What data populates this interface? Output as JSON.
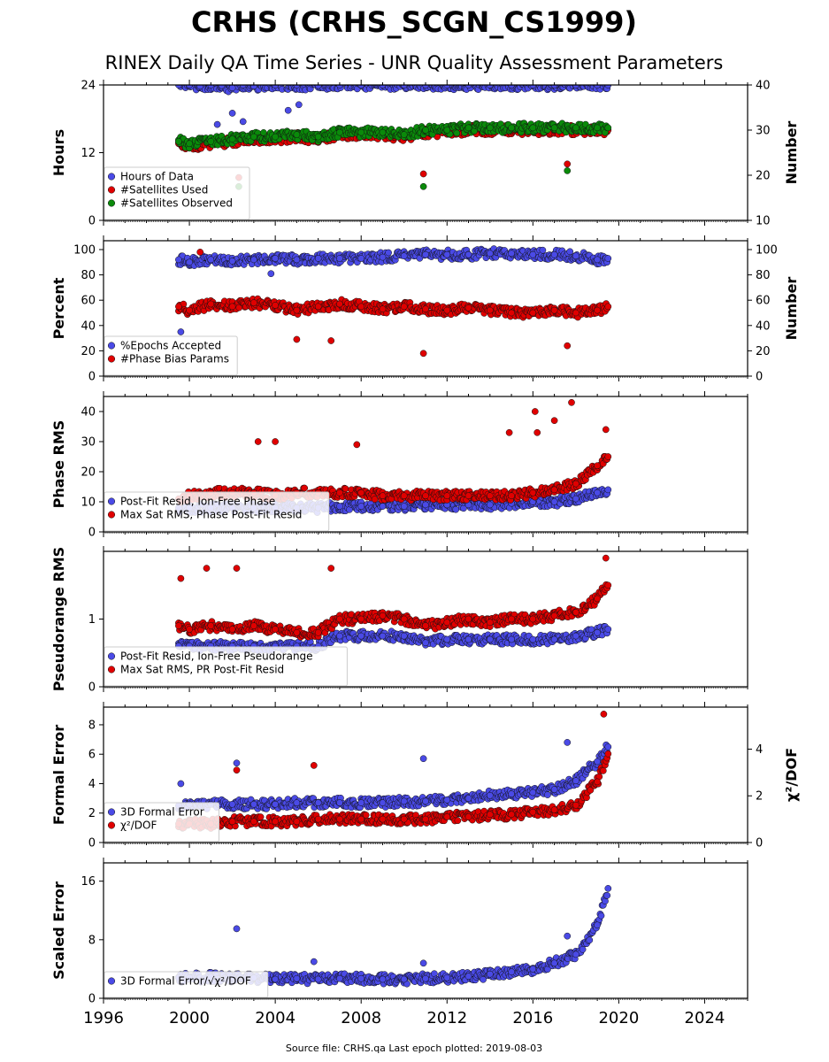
{
  "header": {
    "title": "CRHS (CRHS_SCGN_CS1999)",
    "subtitle": "RINEX Daily QA Time Series - UNR Quality Assessment Parameters"
  },
  "footer": {
    "text": "Source file: CRHS.qa Last epoch plotted: 2019-08-03"
  },
  "colors": {
    "blue": "#4a4ae6",
    "red": "#e00000",
    "green": "#0a8a0a"
  },
  "chart_data": [
    {
      "type": "scatter",
      "ylabel": "Hours",
      "ylabel_right": "Number",
      "ylim": [
        0,
        24
      ],
      "ylim_right": [
        10,
        40
      ],
      "yticks": [
        0,
        12,
        24
      ],
      "yticks_right": [
        10,
        20,
        30,
        40
      ],
      "xlim": [
        1996,
        2026
      ],
      "legend": "lower-left",
      "series": [
        {
          "name": "Hours of Data",
          "color": "blue",
          "axis": "left",
          "x": [
            1999.5,
            2000.0,
            2000.5,
            2001.0,
            2001.5,
            2002.0,
            2002.5,
            2003.0,
            2004.0,
            2005.0,
            2006.0,
            2007.0,
            2008.0,
            2009.0,
            2010.0,
            2011.0,
            2012.0,
            2013.0,
            2014.0,
            2015.0,
            2016.0,
            2017.0,
            2018.0,
            2019.0,
            2019.5,
            2001.3,
            2002.0,
            2002.5,
            2004.6,
            2005.1,
            2002.3
          ],
          "y": [
            24,
            24,
            23.8,
            24,
            23.9,
            23.5,
            24,
            23.8,
            24,
            24,
            23.9,
            24,
            24,
            24,
            24,
            24,
            24,
            24,
            24,
            24,
            24,
            24,
            24,
            24,
            24,
            17,
            19,
            17.5,
            19.5,
            20.5,
            15
          ]
        },
        {
          "name": "#Satellites Used",
          "color": "red",
          "axis": "right",
          "x": [
            1999.5,
            2000.0,
            2001.0,
            2002.0,
            2003.0,
            2004.0,
            2005.0,
            2006.0,
            2007.0,
            2008.0,
            2009.0,
            2010.0,
            2011.0,
            2012.0,
            2013.0,
            2014.0,
            2015.0,
            2016.0,
            2017.0,
            2018.0,
            2019.0,
            2019.5,
            2010.9,
            2017.6,
            2002.3
          ],
          "y": [
            27,
            26.5,
            27,
            27.5,
            28,
            28,
            28.5,
            28,
            29,
            29,
            29,
            28.5,
            29.5,
            29.5,
            30,
            30,
            30,
            30,
            30,
            30,
            30,
            30,
            20.3,
            22.5,
            19.5
          ]
        },
        {
          "name": "#Satellites Observed",
          "color": "green",
          "axis": "right",
          "x": [
            1999.5,
            2000.0,
            2001.0,
            2002.0,
            2003.0,
            2004.0,
            2005.0,
            2006.0,
            2007.0,
            2008.0,
            2009.0,
            2010.0,
            2011.0,
            2012.0,
            2013.0,
            2014.0,
            2015.0,
            2016.0,
            2017.0,
            2018.0,
            2019.0,
            2019.5,
            2010.9,
            2017.6,
            2002.3
          ],
          "y": [
            27.5,
            27,
            27.5,
            28,
            28.5,
            28.5,
            29,
            28.5,
            29.5,
            29.5,
            29.5,
            29,
            30,
            30,
            30.5,
            30.5,
            30.5,
            30.5,
            30.5,
            30.5,
            30.5,
            30.5,
            17.5,
            21,
            17.5
          ]
        }
      ]
    },
    {
      "type": "scatter",
      "ylabel": "Percent",
      "ylabel_right": "Number",
      "ylim": [
        0,
        107
      ],
      "ylim_right": [
        0,
        107
      ],
      "yticks": [
        0,
        20,
        40,
        60,
        80,
        100
      ],
      "yticks_right": [
        0,
        20,
        40,
        60,
        80,
        100
      ],
      "xlim": [
        1996,
        2026
      ],
      "legend": "lower-left",
      "series": [
        {
          "name": "%Epochs Accepted",
          "color": "blue",
          "axis": "left",
          "x": [
            1999.5,
            2000.0,
            2001.0,
            2002.0,
            2003.0,
            2004.0,
            2005.0,
            2006.0,
            2007.0,
            2008.0,
            2009.0,
            2010.0,
            2011.0,
            2012.0,
            2013.0,
            2014.0,
            2015.0,
            2016.0,
            2017.0,
            2018.0,
            2019.0,
            2019.5,
            1999.6,
            2003.8
          ],
          "y": [
            92,
            90,
            92,
            91,
            92,
            93,
            92,
            93,
            93,
            93,
            94,
            95,
            96,
            96,
            96,
            97,
            97,
            96,
            96,
            95,
            92,
            93,
            35,
            81
          ]
        },
        {
          "name": "#Phase Bias Params",
          "color": "red",
          "axis": "right",
          "x": [
            1999.5,
            2000.0,
            2001.0,
            2002.0,
            2003.0,
            2004.0,
            2005.0,
            2006.0,
            2007.0,
            2008.0,
            2009.0,
            2010.0,
            2011.0,
            2012.0,
            2013.0,
            2014.0,
            2015.0,
            2016.0,
            2017.0,
            2018.0,
            2019.0,
            2019.5,
            2005.0,
            2006.6,
            2010.9,
            2017.6,
            2000.5
          ],
          "y": [
            55,
            52,
            57,
            55,
            58,
            56,
            52,
            55,
            57,
            55,
            53,
            55,
            53,
            52,
            54,
            52,
            50,
            50,
            52,
            50,
            52,
            55,
            29,
            28,
            18,
            24,
            98
          ]
        }
      ]
    },
    {
      "type": "scatter",
      "ylabel": "Phase RMS",
      "ylim": [
        0,
        45
      ],
      "yticks": [
        0,
        10,
        20,
        30,
        40
      ],
      "xlim": [
        1996,
        2026
      ],
      "legend": "lower-left",
      "series": [
        {
          "name": "Post-Fit Resid, Ion-Free Phase",
          "color": "blue",
          "x": [
            1999.5,
            2000.0,
            2001.0,
            2002.0,
            2003.0,
            2004.0,
            2005.0,
            2006.0,
            2007.0,
            2008.0,
            2009.0,
            2010.0,
            2011.0,
            2012.0,
            2013.0,
            2014.0,
            2015.0,
            2016.0,
            2017.0,
            2018.0,
            2019.0,
            2019.5
          ],
          "y": [
            8,
            8,
            8,
            8,
            8,
            8,
            8,
            8,
            8.5,
            8.5,
            8.5,
            8.5,
            9,
            9,
            9,
            9,
            9.5,
            10,
            10,
            11,
            13,
            14
          ]
        },
        {
          "name": "Max Sat RMS, Phase Post-Fit Resid",
          "color": "red",
          "x": [
            1999.5,
            2000.0,
            2001.0,
            2002.0,
            2003.0,
            2004.0,
            2005.0,
            2006.0,
            2007.0,
            2008.0,
            2009.0,
            2010.0,
            2011.0,
            2012.0,
            2013.0,
            2014.0,
            2015.0,
            2016.0,
            2017.0,
            2018.0,
            2019.0,
            2019.5,
            2003.2,
            2004.0,
            2007.8,
            2014.9,
            2016.1,
            2016.2,
            2017.0,
            2017.8,
            2019.4
          ],
          "y": [
            11,
            12,
            13,
            13,
            13,
            12,
            13,
            13,
            13,
            13,
            12,
            12,
            12,
            12,
            12,
            12,
            12,
            13,
            14,
            16,
            22,
            25,
            30,
            30,
            29,
            33,
            40,
            33,
            37,
            43,
            34
          ]
        }
      ]
    },
    {
      "type": "scatter",
      "ylabel": "Pseudorange RMS",
      "ylim": [
        0,
        2
      ],
      "yticks": [
        0,
        1
      ],
      "xlim": [
        1996,
        2026
      ],
      "legend": "lower-left",
      "series": [
        {
          "name": "Post-Fit Resid, Ion-Free Pseudorange",
          "color": "blue",
          "x": [
            1999.5,
            2000.0,
            2001.0,
            2002.0,
            2003.0,
            2004.0,
            2005.0,
            2006.0,
            2007.0,
            2008.0,
            2009.0,
            2010.0,
            2011.0,
            2012.0,
            2013.0,
            2014.0,
            2015.0,
            2016.0,
            2017.0,
            2018.0,
            2019.0,
            2019.5
          ],
          "y": [
            0.6,
            0.6,
            0.6,
            0.6,
            0.6,
            0.6,
            0.6,
            0.6,
            0.75,
            0.75,
            0.75,
            0.75,
            0.65,
            0.7,
            0.7,
            0.7,
            0.7,
            0.7,
            0.7,
            0.75,
            0.8,
            0.85
          ]
        },
        {
          "name": "Max Sat RMS, PR Post-Fit Resid",
          "color": "red",
          "x": [
            1999.5,
            2000.0,
            2001.0,
            2002.0,
            2003.0,
            2004.0,
            2005.0,
            2006.0,
            2007.0,
            2008.0,
            2009.0,
            2010.0,
            2011.0,
            2012.0,
            2013.0,
            2014.0,
            2015.0,
            2016.0,
            2017.0,
            2018.0,
            2019.0,
            2019.5,
            1999.6,
            2000.8,
            2002.2,
            2006.6,
            2019.4
          ],
          "y": [
            0.9,
            0.85,
            0.9,
            0.85,
            0.9,
            0.85,
            0.8,
            0.8,
            1.0,
            1.0,
            1.05,
            1.0,
            0.9,
            0.95,
            1.0,
            0.95,
            1.0,
            1.0,
            1.05,
            1.1,
            1.3,
            1.5,
            1.6,
            1.75,
            1.75,
            1.75,
            1.9
          ]
        }
      ]
    },
    {
      "type": "scatter",
      "ylabel": "Formal Error",
      "ylabel_right": "χ²/DOF",
      "ylim": [
        0,
        9.2
      ],
      "ylim_right": [
        0,
        5.8
      ],
      "yticks": [
        0,
        2,
        4,
        6,
        8
      ],
      "yticks_right": [
        0,
        2,
        4
      ],
      "xlim": [
        1996,
        2026
      ],
      "legend": "lower-left",
      "series": [
        {
          "name": "3D Formal Error",
          "color": "blue",
          "axis": "left",
          "x": [
            1999.5,
            2000.0,
            2001.0,
            2002.0,
            2003.0,
            2004.0,
            2005.0,
            2006.0,
            2007.0,
            2008.0,
            2009.0,
            2010.0,
            2011.0,
            2012.0,
            2013.0,
            2014.0,
            2015.0,
            2016.0,
            2017.0,
            2018.0,
            2019.0,
            2019.5,
            1999.6,
            2002.2,
            2010.9,
            2017.6
          ],
          "y": [
            2.5,
            2.6,
            2.6,
            2.6,
            2.6,
            2.6,
            2.7,
            2.7,
            2.7,
            2.7,
            2.7,
            2.8,
            2.8,
            2.9,
            3.0,
            3.2,
            3.3,
            3.4,
            3.6,
            4.2,
            5.5,
            6.5,
            4.0,
            5.4,
            5.7,
            6.8
          ]
        },
        {
          "name": "χ²/DOF",
          "color": "red",
          "axis": "right",
          "x": [
            1999.5,
            2000.0,
            2001.0,
            2002.0,
            2003.0,
            2004.0,
            2005.0,
            2006.0,
            2007.0,
            2008.0,
            2009.0,
            2010.0,
            2011.0,
            2012.0,
            2013.0,
            2014.0,
            2015.0,
            2016.0,
            2017.0,
            2018.0,
            2019.0,
            2019.5,
            2002.2,
            2005.8,
            2019.3
          ],
          "y": [
            0.8,
            0.8,
            0.8,
            0.9,
            0.9,
            0.9,
            0.9,
            1.0,
            1.0,
            1.0,
            1.0,
            1.0,
            1.0,
            1.1,
            1.1,
            1.2,
            1.2,
            1.3,
            1.4,
            1.6,
            2.6,
            3.8,
            3.1,
            3.3,
            5.5
          ]
        }
      ]
    },
    {
      "type": "scatter",
      "ylabel": "Scaled Error",
      "ylim": [
        0,
        18.5
      ],
      "yticks": [
        0,
        8,
        16
      ],
      "xlim": [
        1996,
        2026
      ],
      "xticks": [
        1996,
        2000,
        2004,
        2008,
        2012,
        2016,
        2020,
        2024
      ],
      "legend": "lower-left",
      "series": [
        {
          "name": "3D Formal Error/√χ²/DOF",
          "color": "blue",
          "x": [
            1999.5,
            2000.0,
            2001.0,
            2002.0,
            2003.0,
            2004.0,
            2005.0,
            2006.0,
            2007.0,
            2008.0,
            2009.0,
            2010.0,
            2011.0,
            2012.0,
            2013.0,
            2014.0,
            2015.0,
            2016.0,
            2017.0,
            2018.0,
            2019.0,
            2019.5,
            2002.2,
            2005.8,
            2010.9,
            2017.6
          ],
          "y": [
            2.8,
            2.8,
            2.9,
            2.8,
            2.8,
            2.6,
            2.7,
            2.6,
            2.7,
            2.7,
            2.6,
            2.6,
            2.7,
            2.8,
            3.0,
            3.3,
            3.6,
            4.0,
            4.8,
            6.0,
            10.0,
            15.0,
            9.5,
            5.0,
            4.8,
            8.5
          ]
        }
      ]
    }
  ]
}
